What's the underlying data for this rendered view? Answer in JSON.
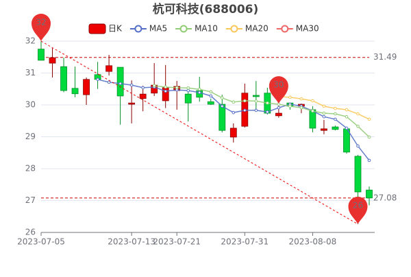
{
  "chart_data": {
    "type": "candlestick",
    "title": "杭可科技(688006)",
    "categories": [
      "2023-07-05",
      null,
      null,
      null,
      null,
      null,
      null,
      null,
      "2023-07-13",
      null,
      null,
      null,
      "2023-07-21",
      null,
      null,
      null,
      null,
      null,
      "2023-07-31",
      null,
      null,
      null,
      null,
      null,
      "2023-08-08",
      null,
      null,
      null,
      null,
      null
    ],
    "candle_name": "日K",
    "up_color": "#ec0000",
    "down_color": "#00da3c",
    "open": [
      31.75,
      31.31,
      31.2,
      30.52,
      30.32,
      30.95,
      31.05,
      31.18,
      30.02,
      30.2,
      30.37,
      30.13,
      30.45,
      30.34,
      30.45,
      30.1,
      30.02,
      28.99,
      29.33,
      30.3,
      30.37,
      29.66,
      30.06,
      29.96,
      29.85,
      29.2,
      29.31,
      29.25,
      28.39,
      27.33
    ],
    "close": [
      31.4,
      31.48,
      30.45,
      30.35,
      30.8,
      30.8,
      31.23,
      30.28,
      30.06,
      30.34,
      30.62,
      30.54,
      30.58,
      30.06,
      30.24,
      30.02,
      29.2,
      29.27,
      30.37,
      30.26,
      29.74,
      29.74,
      29.96,
      30.02,
      29.27,
      29.25,
      29.23,
      28.52,
      27.27,
      27.08
    ],
    "low": [
      31.4,
      30.86,
      30.4,
      30.24,
      30.0,
      30.5,
      30.92,
      29.38,
      29.42,
      29.8,
      30.28,
      29.9,
      29.85,
      29.48,
      30.1,
      30.0,
      29.14,
      28.82,
      29.29,
      29.85,
      29.7,
      29.6,
      29.85,
      29.74,
      29.14,
      29.08,
      29.2,
      28.47,
      26.26,
      26.85
    ],
    "high": [
      32.0,
      31.78,
      31.48,
      31.2,
      30.86,
      31.35,
      31.57,
      31.18,
      30.77,
      30.6,
      31.31,
      31.25,
      30.75,
      30.56,
      30.88,
      30.2,
      30.32,
      29.42,
      30.67,
      30.75,
      30.54,
      30.04,
      30.06,
      30.04,
      29.96,
      29.53,
      29.35,
      29.31,
      28.43,
      27.44
    ],
    "series": [
      {
        "name": "MA5",
        "color": "#5470c6",
        "values": [
          null,
          null,
          null,
          null,
          null,
          30.8,
          30.71,
          30.67,
          30.62,
          30.54,
          30.56,
          30.43,
          30.47,
          30.45,
          30.39,
          30.28,
          29.96,
          29.76,
          29.83,
          29.83,
          29.78,
          29.91,
          30.02,
          29.96,
          29.81,
          29.63,
          29.55,
          29.27,
          28.71,
          28.26
        ]
      },
      {
        "name": "MA10",
        "color": "#91cc75",
        "values": [
          null,
          null,
          null,
          null,
          null,
          null,
          null,
          null,
          null,
          null,
          30.6,
          30.56,
          30.54,
          30.53,
          30.49,
          30.41,
          30.22,
          30.09,
          30.13,
          30.12,
          30.06,
          30.02,
          29.96,
          29.91,
          29.81,
          29.74,
          29.72,
          29.63,
          29.33,
          28.99
        ]
      },
      {
        "name": "MA20",
        "color": "#fac858",
        "values": [
          null,
          null,
          null,
          null,
          null,
          null,
          null,
          null,
          null,
          null,
          null,
          null,
          null,
          null,
          null,
          null,
          null,
          null,
          null,
          null,
          null,
          30.26,
          30.24,
          30.19,
          30.13,
          29.96,
          29.89,
          29.85,
          29.72,
          29.55
        ]
      },
      {
        "name": "MA30",
        "color": "#ee6666",
        "values": [
          null,
          null,
          null,
          null,
          null,
          null,
          null,
          null,
          null,
          null,
          null,
          null,
          null,
          null,
          null,
          null,
          null,
          null,
          null,
          null,
          null,
          null,
          null,
          null,
          null,
          null,
          null,
          null,
          null,
          null
        ]
      }
    ],
    "mark_points": [
      {
        "value": 32.0,
        "label": "32"
      },
      {
        "value": 30.04,
        "label": "30"
      },
      {
        "value": 26.26,
        "label": "26"
      }
    ],
    "mark_lines": [
      31.49,
      27.08
    ],
    "ylim": [
      26,
      32
    ],
    "yticks": [
      26,
      27,
      28,
      29,
      30,
      31,
      32
    ],
    "grid": true
  }
}
